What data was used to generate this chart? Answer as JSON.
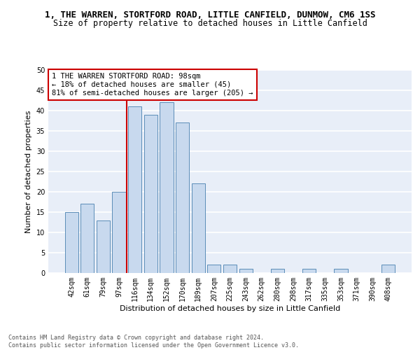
{
  "title_line1": "1, THE WARREN, STORTFORD ROAD, LITTLE CANFIELD, DUNMOW, CM6 1SS",
  "title_line2": "Size of property relative to detached houses in Little Canfield",
  "xlabel": "Distribution of detached houses by size in Little Canfield",
  "ylabel": "Number of detached properties",
  "categories": [
    "42sqm",
    "61sqm",
    "79sqm",
    "97sqm",
    "116sqm",
    "134sqm",
    "152sqm",
    "170sqm",
    "189sqm",
    "207sqm",
    "225sqm",
    "243sqm",
    "262sqm",
    "280sqm",
    "298sqm",
    "317sqm",
    "335sqm",
    "353sqm",
    "371sqm",
    "390sqm",
    "408sqm"
  ],
  "values": [
    15,
    17,
    13,
    20,
    41,
    39,
    42,
    37,
    22,
    2,
    2,
    1,
    0,
    1,
    0,
    1,
    0,
    1,
    0,
    0,
    2
  ],
  "bar_color": "#c8d9ee",
  "bar_edge_color": "#5b8db8",
  "background_color": "#e8eef8",
  "grid_color": "#ffffff",
  "ref_line_color": "#cc0000",
  "annotation_text": "1 THE WARREN STORTFORD ROAD: 98sqm\n← 18% of detached houses are smaller (45)\n81% of semi-detached houses are larger (205) →",
  "annotation_box_color": "#cc0000",
  "ylim": [
    0,
    50
  ],
  "yticks": [
    0,
    5,
    10,
    15,
    20,
    25,
    30,
    35,
    40,
    45,
    50
  ],
  "footer_text": "Contains HM Land Registry data © Crown copyright and database right 2024.\nContains public sector information licensed under the Open Government Licence v3.0.",
  "title_fontsize": 9,
  "subtitle_fontsize": 8.5,
  "axis_label_fontsize": 8,
  "tick_fontsize": 7,
  "annotation_fontsize": 7.5
}
